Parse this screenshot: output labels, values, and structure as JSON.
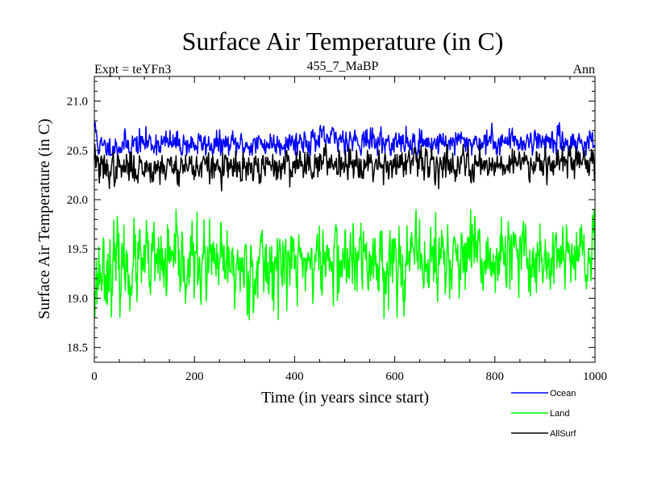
{
  "colors": {
    "ocean": "#0000ff",
    "land": "#00ff00",
    "allsurf": "#000000",
    "axis": "#000000",
    "background": "#ffffff"
  },
  "chart_data": {
    "type": "line",
    "title": "Surface Air Temperature (in C)",
    "subtitle_left": "Expt = teYFn3",
    "subtitle_center": "455_7_MaBP",
    "subtitle_right": "Ann",
    "xlabel": "Time (in years since start)",
    "ylabel": "Surface Air Temperature (in C)",
    "xlim": [
      0,
      1000
    ],
    "ylim": [
      18.35,
      21.25
    ],
    "xticks": [
      0,
      200,
      400,
      600,
      800,
      1000
    ],
    "xtick_labels": [
      "0",
      "200",
      "400",
      "600",
      "800",
      "1000"
    ],
    "yticks": [
      18.5,
      19.0,
      19.5,
      20.0,
      20.5,
      21.0
    ],
    "ytick_labels": [
      "18.5",
      "19.0",
      "19.5",
      "20.0",
      "20.5",
      "21.0"
    ],
    "grid": false,
    "legend_position": "bottom-right",
    "n_points": 1000,
    "series": [
      {
        "name": "Ocean",
        "color": "#0000ff",
        "mean": 20.58,
        "std": 0.065,
        "noise_seed": 11,
        "approx_range": [
          20.45,
          20.79
        ],
        "anchors": [
          [
            0,
            20.76
          ],
          [
            10,
            20.52
          ],
          [
            100,
            20.58
          ],
          [
            200,
            20.56
          ],
          [
            300,
            20.55
          ],
          [
            400,
            20.59
          ],
          [
            500,
            20.62
          ],
          [
            600,
            20.57
          ],
          [
            700,
            20.58
          ],
          [
            800,
            20.59
          ],
          [
            900,
            20.6
          ],
          [
            1000,
            20.57
          ]
        ]
      },
      {
        "name": "Land",
        "color": "#00ff00",
        "mean": 19.34,
        "std": 0.2,
        "noise_seed": 23,
        "approx_range": [
          18.78,
          19.9
        ],
        "anchors": [
          [
            0,
            19.05
          ],
          [
            10,
            19.3
          ],
          [
            100,
            19.33
          ],
          [
            200,
            19.35
          ],
          [
            300,
            19.3
          ],
          [
            400,
            19.36
          ],
          [
            500,
            19.38
          ],
          [
            600,
            19.37
          ],
          [
            700,
            19.4
          ],
          [
            800,
            19.38
          ],
          [
            900,
            19.42
          ],
          [
            1000,
            19.4
          ]
        ]
      },
      {
        "name": "AllSurf",
        "color": "#000000",
        "mean": 20.35,
        "std": 0.08,
        "noise_seed": 37,
        "approx_range": [
          20.08,
          20.56
        ],
        "anchors": [
          [
            0,
            20.5
          ],
          [
            10,
            20.3
          ],
          [
            100,
            20.33
          ],
          [
            200,
            20.34
          ],
          [
            300,
            20.3
          ],
          [
            400,
            20.36
          ],
          [
            500,
            20.39
          ],
          [
            600,
            20.36
          ],
          [
            700,
            20.37
          ],
          [
            800,
            20.36
          ],
          [
            900,
            20.4
          ],
          [
            1000,
            20.38
          ]
        ]
      }
    ]
  }
}
